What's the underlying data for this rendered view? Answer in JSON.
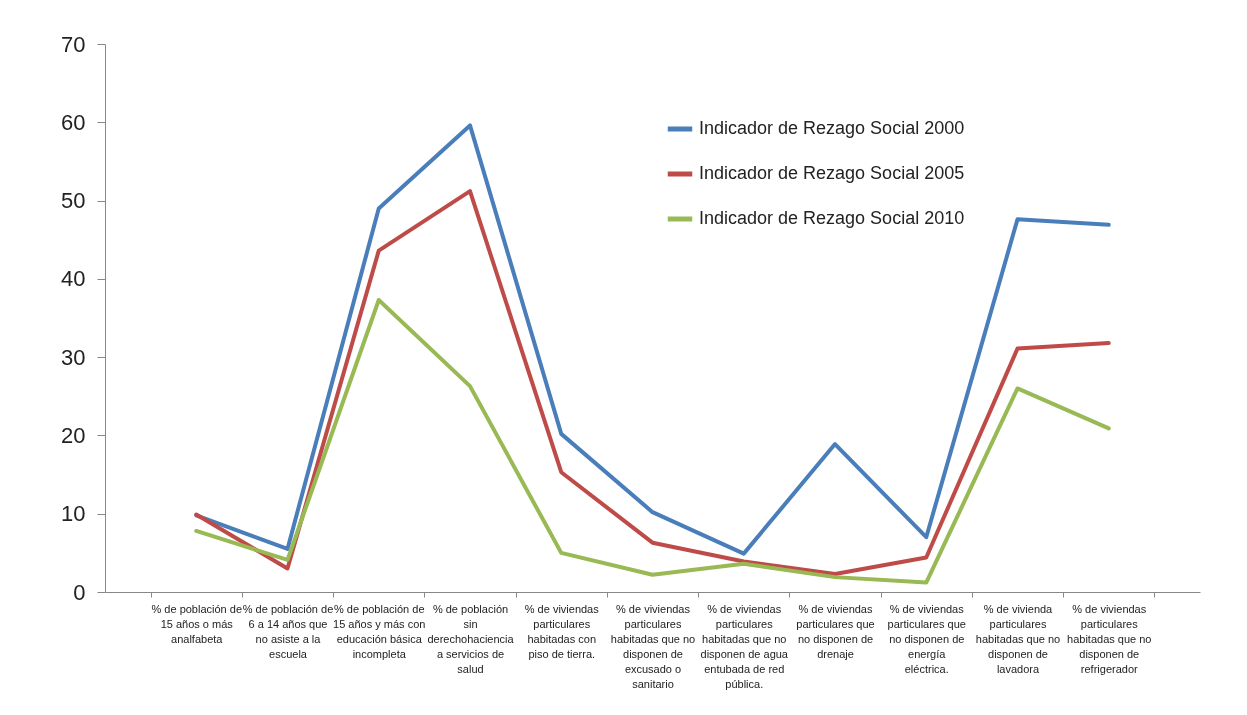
{
  "chart_data": {
    "type": "line",
    "categories": [
      "% de población de 15 años o más analfabeta",
      "% de población de 6 a 14 años que no asiste a la escuela",
      "% de población de 15 años y más con educación básica incompleta",
      "% de población sin derechohaciencia a servicios de salud",
      "% de viviendas particulares habitadas con piso de tierra.",
      "% de viviendas particulares habitadas que no disponen de excusado o sanitario",
      "% de viviendas particulares habitadas que no disponen de agua entubada de red pública.",
      "% de viviendas particulares que no disponen de drenaje",
      "% de viviendas particulares que no disponen de energía eléctrica.",
      "% de vivienda particulares habitadas que no disponen de lavadora",
      "% de viviendas particulares habitadas que no disponen de refrigerador"
    ],
    "series": [
      {
        "name": "Indicador de Rezago Social 2000",
        "color": "#4a7ebb",
        "values": [
          9.8,
          5.5,
          49,
          59.6,
          20.2,
          10.2,
          4.9,
          18.9,
          7.0,
          47.6,
          46.9
        ]
      },
      {
        "name": "Indicador de Rezago Social 2005",
        "color": "#be4b48",
        "values": [
          9.9,
          3.0,
          43.6,
          51.2,
          15.3,
          6.3,
          3.9,
          2.3,
          4.4,
          31.1,
          31.8
        ]
      },
      {
        "name": "Indicador de Rezago Social 2010",
        "color": "#98b954",
        "values": [
          7.8,
          4.1,
          37.3,
          26.3,
          5.0,
          2.2,
          3.6,
          1.9,
          1.2,
          26.0,
          20.9
        ]
      }
    ],
    "ylim": [
      0,
      70
    ],
    "yticks": [
      0,
      10,
      20,
      30,
      40,
      50,
      60,
      70
    ],
    "grid": false,
    "legend": "top right",
    "marker": "none",
    "line_style": "solid"
  }
}
